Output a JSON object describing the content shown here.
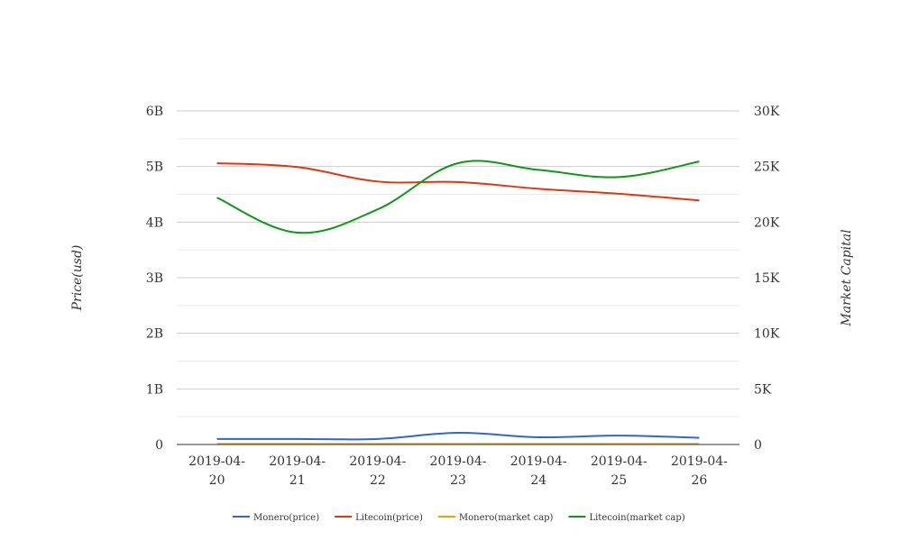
{
  "chart_data": {
    "type": "line",
    "title": "",
    "categories": [
      "2019-04-20",
      "2019-04-21",
      "2019-04-22",
      "2019-04-23",
      "2019-04-24",
      "2019-04-25",
      "2019-04-26"
    ],
    "category_lines": [
      [
        "2019-04-",
        "20"
      ],
      [
        "2019-04-",
        "21"
      ],
      [
        "2019-04-",
        "22"
      ],
      [
        "2019-04-",
        "23"
      ],
      [
        "2019-04-",
        "24"
      ],
      [
        "2019-04-",
        "25"
      ],
      [
        "2019-04-",
        "26"
      ]
    ],
    "ylabel": "Price(usd)",
    "y2label": "Market Capital",
    "ylim": [
      0,
      6000000000
    ],
    "y2lim": [
      0,
      30000
    ],
    "yticks": [
      "0",
      "1B",
      "2B",
      "3B",
      "4B",
      "5B",
      "6B"
    ],
    "y2ticks": [
      "0",
      "5K",
      "10K",
      "15K",
      "20K",
      "25K",
      "30K"
    ],
    "grid": true,
    "legend_position": "bottom",
    "series": [
      {
        "name": "Monero(price)",
        "color": "#3366cc",
        "values": [
          100000000.0,
          100000000.0,
          100000000.0,
          210000000.0,
          130000000.0,
          160000000.0,
          120000000.0
        ]
      },
      {
        "name": "Litecoin(price)",
        "color": "#dc3912",
        "values": [
          5060000000.0,
          4990000000.0,
          4730000000.0,
          4720000000.0,
          4600000000.0,
          4510000000.0,
          4390000000.0
        ]
      },
      {
        "name": "Monero(market cap)",
        "color": "#ff9900",
        "values": [
          10000000.0,
          10000000.0,
          10000000.0,
          10000000.0,
          10000000.0,
          10000000.0,
          10000000.0
        ]
      },
      {
        "name": "Litecoin(market cap)",
        "color": "#109618",
        "values": [
          4440000000.0,
          3810000000.0,
          4230000000.0,
          5060000000.0,
          4940000000.0,
          4810000000.0,
          5090000000.0
        ]
      }
    ]
  }
}
